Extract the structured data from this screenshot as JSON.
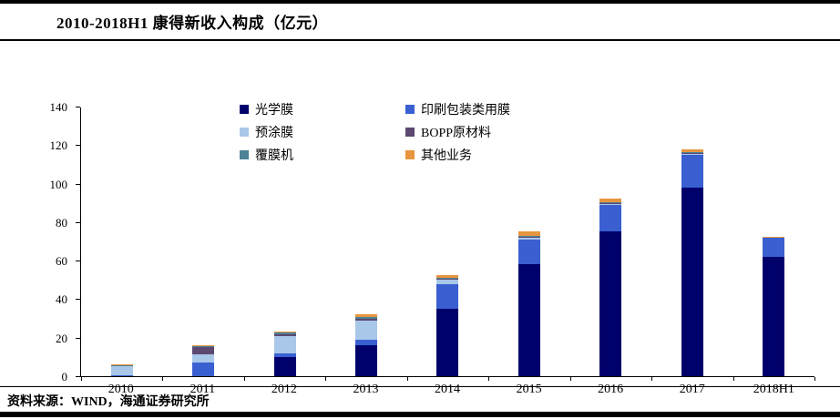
{
  "header": {
    "title": "2010-2018H1 康得新收入构成（亿元）"
  },
  "footer": {
    "source": "资料来源：WIND，海通证券研究所"
  },
  "chart_data": {
    "type": "bar",
    "stacked": true,
    "title": "2010-2018H1 康得新收入构成（亿元）",
    "categories": [
      "2010",
      "2011",
      "2012",
      "2013",
      "2014",
      "2015",
      "2016",
      "2017",
      "2018H1"
    ],
    "series": [
      {
        "name": "光学膜",
        "color": "#00006B",
        "values": [
          0,
          0,
          10,
          16,
          35,
          58,
          75,
          98,
          62
        ]
      },
      {
        "name": "印刷包装类用膜",
        "color": "#3A5FD0",
        "values": [
          0.5,
          7,
          2,
          3,
          13,
          13,
          14,
          17,
          10
        ]
      },
      {
        "name": "预涂膜",
        "color": "#A9C7E8",
        "values": [
          4.5,
          4.5,
          9,
          10,
          2,
          1,
          0.5,
          0.5,
          0
        ]
      },
      {
        "name": "BOPP原材料",
        "color": "#5B4971",
        "values": [
          0.3,
          3.5,
          1,
          1,
          0.5,
          0.5,
          0.5,
          0.5,
          0
        ]
      },
      {
        "name": "覆膜机",
        "color": "#4D8296",
        "values": [
          0.4,
          0.5,
          0.5,
          0.8,
          0.5,
          0.5,
          0.3,
          0.3,
          0
        ]
      },
      {
        "name": "其他业务",
        "color": "#E8953F",
        "values": [
          0.3,
          0.5,
          0.5,
          1.5,
          1.5,
          2,
          2,
          1.5,
          0.5
        ]
      }
    ],
    "totals": [
      6,
      16,
      23,
      32.3,
      52.5,
      75,
      92.3,
      117.8,
      72.5
    ],
    "ylim": [
      0,
      140
    ],
    "ytick_step": 20,
    "grid": false,
    "legend_position": "top"
  }
}
